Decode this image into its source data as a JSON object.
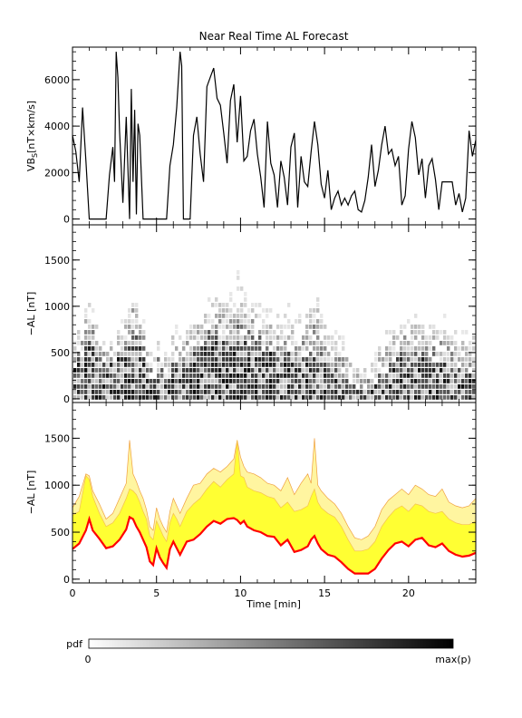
{
  "title": "Near Real Time AL Forecast",
  "colors": {
    "axis": "#000000",
    "vbs_line": "#000000",
    "band_fill": "#ffff33",
    "band_edge": "#f0a040",
    "median_line": "#ff0000",
    "heat_dark": "#000000",
    "heat_light": "#ffffff"
  },
  "chart_data": [
    {
      "type": "line",
      "panel": "vbs",
      "ylabel": "VB",
      "ylabel_sub": "S",
      "ylabel_units": "[nT×km/s]",
      "xlim": [
        0,
        24
      ],
      "ylim": [
        -250,
        7400
      ],
      "yticks": [
        0,
        2000,
        4000,
        6000
      ],
      "xticks": [
        0,
        5,
        10,
        15,
        20
      ],
      "x": [
        0,
        0.2,
        0.4,
        0.6,
        0.8,
        1.0,
        1.2,
        1.4,
        1.6,
        1.8,
        2.0,
        2.2,
        2.4,
        2.5,
        2.6,
        2.7,
        2.8,
        3.0,
        3.2,
        3.4,
        3.5,
        3.6,
        3.7,
        3.8,
        3.9,
        4.0,
        4.2,
        4.4,
        4.6,
        4.8,
        5.0,
        5.2,
        5.4,
        5.6,
        5.8,
        6.0,
        6.2,
        6.4,
        6.5,
        6.6,
        6.8,
        7.0,
        7.2,
        7.4,
        7.6,
        7.8,
        8.0,
        8.2,
        8.4,
        8.6,
        8.8,
        9.0,
        9.2,
        9.4,
        9.6,
        9.8,
        10.0,
        10.2,
        10.4,
        10.6,
        10.8,
        11.0,
        11.2,
        11.4,
        11.6,
        11.8,
        12.0,
        12.2,
        12.4,
        12.6,
        12.8,
        13.0,
        13.2,
        13.4,
        13.6,
        13.8,
        14.0,
        14.2,
        14.4,
        14.6,
        14.8,
        15.0,
        15.2,
        15.4,
        15.6,
        15.8,
        16.0,
        16.2,
        16.4,
        16.6,
        16.8,
        17.0,
        17.2,
        17.4,
        17.6,
        17.8,
        18.0,
        18.2,
        18.4,
        18.6,
        18.8,
        19.0,
        19.2,
        19.4,
        19.6,
        19.8,
        20.0,
        20.2,
        20.4,
        20.6,
        20.8,
        21.0,
        21.2,
        21.4,
        21.6,
        21.8,
        22.0,
        22.2,
        22.4,
        22.6,
        22.8,
        23.0,
        23.2,
        23.4,
        23.6,
        23.8,
        24.0
      ],
      "y": [
        3600,
        2900,
        1600,
        4800,
        2500,
        0,
        0,
        0,
        0,
        0,
        0,
        1900,
        3100,
        1600,
        7200,
        6100,
        3800,
        700,
        4400,
        0,
        5600,
        1600,
        4700,
        200,
        4100,
        3600,
        0,
        0,
        0,
        0,
        0,
        0,
        0,
        0,
        2300,
        3200,
        4800,
        7200,
        6600,
        0,
        0,
        0,
        3600,
        4400,
        2800,
        1600,
        5700,
        6100,
        6500,
        5200,
        4900,
        3700,
        2400,
        5100,
        5800,
        3300,
        5300,
        2500,
        2700,
        3800,
        4300,
        2800,
        1800,
        500,
        4200,
        2400,
        1900,
        500,
        2500,
        1800,
        600,
        3100,
        3700,
        500,
        2700,
        1600,
        1400,
        2900,
        4200,
        3200,
        1500,
        900,
        2100,
        400,
        900,
        1200,
        600,
        900,
        600,
        1000,
        1200,
        400,
        300,
        800,
        1800,
        3200,
        1400,
        2100,
        3200,
        4000,
        2800,
        3000,
        2300,
        2700,
        600,
        1000,
        3000,
        4200,
        3500,
        1900,
        2600,
        900,
        2300,
        2600,
        1700,
        400,
        1600,
        1600,
        1600,
        1600,
        600,
        1100,
        300,
        900,
        3800,
        2700,
        3400
      ]
    },
    {
      "type": "heatmap",
      "panel": "probability",
      "ylabel": "−AL [nT]",
      "xlim": [
        0,
        24
      ],
      "ylim": [
        -40,
        1880
      ],
      "yticks": [
        0,
        500,
        1000,
        1500
      ],
      "xticks": [
        0,
        5,
        10,
        15,
        20
      ],
      "colorbar_label": "pdf",
      "colorbar_min": "0",
      "colorbar_max": "max(p)"
    },
    {
      "type": "area",
      "panel": "forecast",
      "ylabel": "−AL [nT]",
      "xlabel": "Time [min]",
      "xlim": [
        0,
        24
      ],
      "ylim": [
        -40,
        1880
      ],
      "yticks": [
        0,
        500,
        1000,
        1500
      ],
      "xticks": [
        0,
        5,
        10,
        15,
        20
      ],
      "x": [
        0,
        0.4,
        0.8,
        1.0,
        1.2,
        1.6,
        2.0,
        2.4,
        2.8,
        3.2,
        3.4,
        3.6,
        3.8,
        4.0,
        4.2,
        4.4,
        4.6,
        4.8,
        5.0,
        5.2,
        5.4,
        5.6,
        5.8,
        6.0,
        6.2,
        6.4,
        6.8,
        7.2,
        7.6,
        8.0,
        8.4,
        8.8,
        9.2,
        9.6,
        9.8,
        10.0,
        10.2,
        10.4,
        10.8,
        11.2,
        11.6,
        12.0,
        12.4,
        12.8,
        13.2,
        13.6,
        14.0,
        14.2,
        14.4,
        14.6,
        14.8,
        15.2,
        15.6,
        16.0,
        16.4,
        16.8,
        17.2,
        17.6,
        18.0,
        18.4,
        18.8,
        19.2,
        19.6,
        20.0,
        20.4,
        20.8,
        21.2,
        21.6,
        22.0,
        22.4,
        22.8,
        23.2,
        23.6,
        24.0
      ],
      "median": [
        320,
        380,
        520,
        640,
        520,
        430,
        330,
        350,
        420,
        530,
        660,
        640,
        560,
        500,
        420,
        340,
        190,
        150,
        330,
        230,
        170,
        120,
        320,
        400,
        330,
        260,
        400,
        420,
        480,
        560,
        620,
        590,
        640,
        650,
        630,
        590,
        620,
        560,
        520,
        500,
        460,
        450,
        360,
        420,
        290,
        310,
        350,
        420,
        460,
        380,
        320,
        260,
        240,
        180,
        110,
        60,
        60,
        60,
        110,
        220,
        310,
        380,
        400,
        350,
        420,
        440,
        360,
        340,
        380,
        300,
        260,
        240,
        250,
        280
      ],
      "band_low": [
        470,
        520,
        680,
        740,
        620,
        520,
        420,
        450,
        520,
        640,
        760,
        760,
        660,
        600,
        520,
        440,
        280,
        260,
        420,
        340,
        260,
        220,
        420,
        500,
        430,
        360,
        500,
        540,
        600,
        700,
        760,
        740,
        780,
        800,
        780,
        760,
        780,
        700,
        680,
        660,
        620,
        600,
        520,
        560,
        440,
        460,
        500,
        560,
        620,
        540,
        480,
        420,
        400,
        320,
        220,
        150,
        160,
        170,
        220,
        340,
        440,
        520,
        540,
        500,
        560,
        560,
        500,
        480,
        520,
        440,
        400,
        380,
        390,
        420
      ],
      "band_high": [
        680,
        720,
        1100,
        1060,
        880,
        700,
        560,
        600,
        700,
        860,
        960,
        940,
        900,
        820,
        720,
        640,
        460,
        420,
        620,
        540,
        460,
        400,
        600,
        700,
        640,
        560,
        720,
        800,
        860,
        960,
        1040,
        980,
        1060,
        1120,
        1480,
        1100,
        1080,
        980,
        940,
        920,
        880,
        860,
        760,
        820,
        720,
        740,
        780,
        880,
        960,
        820,
        760,
        700,
        660,
        560,
        420,
        300,
        300,
        320,
        400,
        560,
        660,
        740,
        780,
        720,
        800,
        780,
        720,
        700,
        720,
        640,
        600,
        580,
        580,
        620
      ],
      "outer_high": [
        760,
        880,
        1120,
        1100,
        940,
        800,
        640,
        700,
        860,
        1020,
        1480,
        1120,
        1040,
        940,
        860,
        740,
        560,
        520,
        760,
        640,
        560,
        500,
        720,
        860,
        780,
        700,
        860,
        1000,
        1020,
        1120,
        1180,
        1140,
        1200,
        1280,
        1480,
        1300,
        1200,
        1140,
        1120,
        1080,
        1020,
        1000,
        940,
        1080,
        900,
        1020,
        1120,
        1020,
        1500,
        1000,
        940,
        860,
        800,
        700,
        560,
        440,
        420,
        460,
        560,
        740,
        840,
        900,
        960,
        900,
        1000,
        960,
        900,
        880,
        960,
        820,
        780,
        760,
        780,
        860
      ]
    }
  ]
}
